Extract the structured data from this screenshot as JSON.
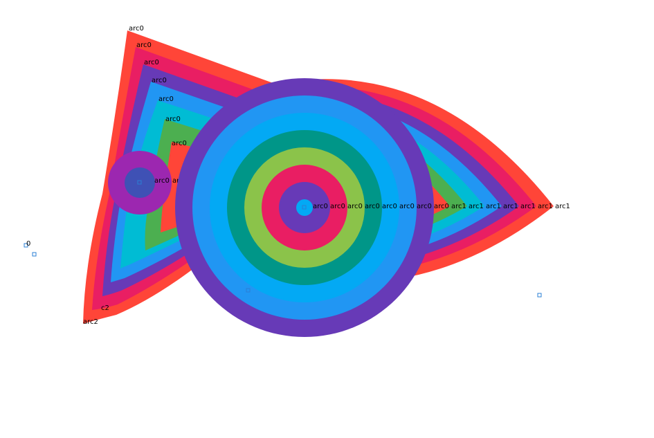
{
  "palette": {
    "red": "#ff4538",
    "pink": "#e91e63",
    "purple": "#673ab7",
    "blue": "#2196f3",
    "lightblue": "#03a9f4",
    "cyan": "#00bcd4",
    "green": "#4caf50",
    "teal": "#009688",
    "lime": "#8bc34a",
    "violet": "#9c27b0",
    "indigo": "#3f51b5",
    "marker": "#2a7fd4"
  },
  "triangle_labels": [
    "arc0",
    "arc0",
    "arc0",
    "arc0",
    "arc0",
    "arc0",
    "arc0"
  ],
  "circle_labels": [
    "arc0",
    "arc0",
    "arc0",
    "arc0",
    "arc0",
    "arc0",
    "arc0",
    "arc0"
  ],
  "lens_labels": [
    "arc1",
    "arc1",
    "arc1",
    "arc1",
    "arc1",
    "arc1",
    "arc1"
  ],
  "small_circle_labels": [
    "arc0",
    "arc"
  ],
  "edge_labels": {
    "left_marker": "0",
    "bottom_left": "arc2",
    "bottom_left_inner": "c2"
  }
}
